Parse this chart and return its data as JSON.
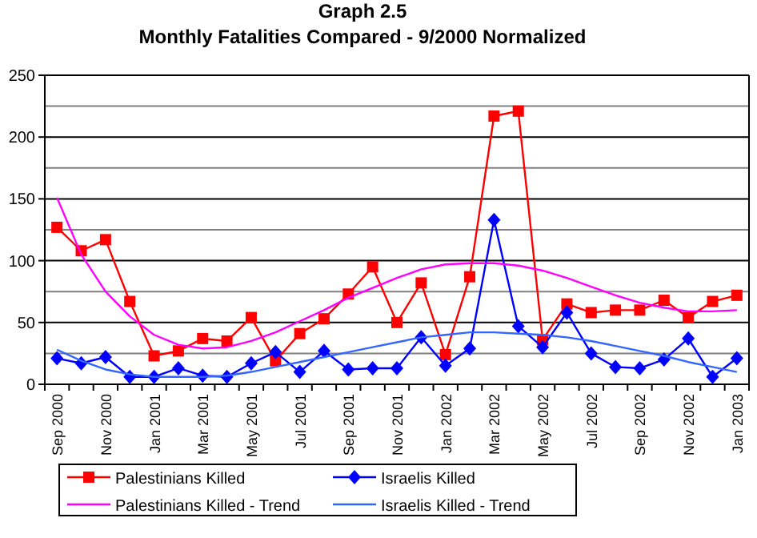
{
  "chart_data": {
    "type": "line",
    "title": "Graph 2.5",
    "subtitle": "Monthly Fatalities Compared - 9/2000 Normalized",
    "categories": [
      "Sep 2000",
      null,
      "Nov 2000",
      null,
      "Jan 2001",
      null,
      "Mar 2001",
      null,
      "May 2001",
      null,
      "Jul 2001",
      null,
      "Sep 2001",
      null,
      "Nov 2001",
      null,
      "Jan 2002",
      null,
      "Mar 2002",
      null,
      "May 2002",
      null,
      "Jul 2002",
      null,
      "Sep 2002",
      null,
      "Nov 2002",
      null,
      "Jan 2003"
    ],
    "series": [
      {
        "name": "Palestinians Killed",
        "color": "#ff0000",
        "marker": "square",
        "values": [
          127,
          108,
          117,
          67,
          23,
          27,
          37,
          35,
          54,
          19,
          41,
          53,
          73,
          95,
          50,
          82,
          24,
          87,
          217,
          221,
          36,
          65,
          58,
          60,
          60,
          68,
          54,
          67,
          72
        ]
      },
      {
        "name": "Israelis Killed",
        "color": "#0000ff",
        "marker": "diamond",
        "values": [
          21,
          17,
          22,
          6,
          6,
          13,
          7,
          6,
          17,
          26,
          10,
          27,
          12,
          13,
          13,
          38,
          15,
          29,
          133,
          47,
          30,
          58,
          25,
          14,
          13,
          20,
          37,
          6,
          21
        ]
      },
      {
        "name": "Palestinians Killed - Trend",
        "color": "#ff00ff",
        "marker": "none",
        "values": [
          151,
          105,
          75,
          55,
          40,
          32,
          29,
          30,
          35,
          42,
          51,
          60,
          70,
          78,
          86,
          93,
          97,
          98,
          98,
          96,
          92,
          86,
          79,
          72,
          66,
          62,
          59,
          59,
          60
        ]
      },
      {
        "name": "Israelis Killed - Trend",
        "color": "#3366ff",
        "marker": "none",
        "values": [
          28,
          19,
          12,
          8,
          6,
          6,
          6,
          7,
          10,
          14,
          18,
          22,
          26,
          30,
          34,
          38,
          40,
          42,
          42,
          41,
          40,
          38,
          35,
          31,
          27,
          23,
          18,
          14,
          10
        ]
      }
    ],
    "ylim": [
      0,
      250
    ],
    "yticks": [
      0,
      {
        "value": 25,
        "label": null
      },
      50,
      {
        "value": 75,
        "label": null
      },
      100,
      {
        "value": 125,
        "label": null
      },
      150,
      {
        "value": 175,
        "label": null
      },
      200,
      {
        "value": 225,
        "label": null
      },
      250
    ],
    "grid": "y",
    "legend": "bottom"
  }
}
